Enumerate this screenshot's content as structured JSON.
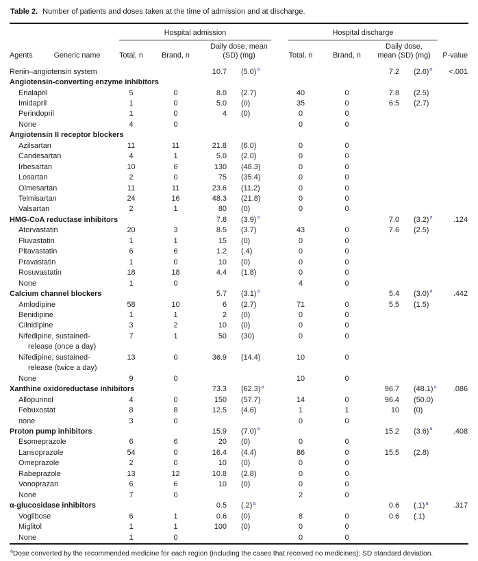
{
  "title": {
    "prefix": "Table 2.",
    "text": "Number of patients and doses taken at the time of admission and at discharge."
  },
  "colors": {
    "footnote_sup": "#3c4db8"
  },
  "table": {
    "header": {
      "group_admission": "Hospital admission",
      "group_discharge": "Hospital discharge",
      "col_agents": "Agents",
      "col_generic": "Generic name",
      "col_total": "Total, n",
      "col_brand": "Brand, n",
      "col_dose_admission_line1": "Daily dose, mean",
      "col_dose_admission_line2": "(SD) (mg)",
      "col_dose_discharge_line1": "Daily dose,",
      "col_dose_discharge_line2": "mean (SD) (mg)",
      "col_pvalue": "P-value"
    },
    "footnote_marker": "a",
    "rows": [
      {
        "style": "plain",
        "label": "Renin–angiotensin system",
        "am": "10.7",
        "asd": "(5.0)",
        "asup": true,
        "dm": "7.2",
        "dsd": "(2.6)",
        "dsup": true,
        "p": "<.001"
      },
      {
        "style": "section",
        "label": "Angiotensin-converting enzyme inhibitors"
      },
      {
        "style": "item",
        "label": "Enalapril",
        "at": "5",
        "ab": "0",
        "am": "8.0",
        "asd": "(2.7)",
        "dt": "40",
        "db": "0",
        "dm": "7.8",
        "dsd": "(2.5)"
      },
      {
        "style": "item",
        "label": "Imidapril",
        "at": "1",
        "ab": "0",
        "am": "5.0",
        "asd": "(0)",
        "dt": "35",
        "db": "0",
        "dm": "6.5",
        "dsd": "(2.7)"
      },
      {
        "style": "item",
        "label": "Perindopril",
        "at": "1",
        "ab": "0",
        "am": "4",
        "asd": "(0)",
        "dt": "0",
        "db": "0"
      },
      {
        "style": "item",
        "label": "None",
        "at": "4",
        "ab": "0",
        "dt": "0",
        "db": "0"
      },
      {
        "style": "section",
        "label": "Angiotensin II receptor blockers"
      },
      {
        "style": "item",
        "label": "Azilsartan",
        "at": "11",
        "ab": "11",
        "am": "21.8",
        "asd": "(6.0)",
        "dt": "0",
        "db": "0"
      },
      {
        "style": "item",
        "label": "Candesartan",
        "at": "4",
        "ab": "1",
        "am": "5.0",
        "asd": "(2.0)",
        "dt": "0",
        "db": "0"
      },
      {
        "style": "item",
        "label": "Irbesartan",
        "at": "10",
        "ab": "6",
        "am": "130",
        "asd": "(48.3)",
        "dt": "0",
        "db": "0"
      },
      {
        "style": "item",
        "label": "Losartan",
        "at": "2",
        "ab": "0",
        "am": "75",
        "asd": "(35.4)",
        "dt": "0",
        "db": "0"
      },
      {
        "style": "item",
        "label": "Olmesartan",
        "at": "11",
        "ab": "11",
        "am": "23.6",
        "asd": "(11.2)",
        "dt": "0",
        "db": "0"
      },
      {
        "style": "item",
        "label": "Telmisartan",
        "at": "24",
        "ab": "16",
        "am": "48.3",
        "asd": "(21.8)",
        "dt": "0",
        "db": "0"
      },
      {
        "style": "item",
        "label": "Valsartan",
        "at": "2",
        "ab": "1",
        "am": "80",
        "asd": "(0)",
        "dt": "0",
        "db": "0"
      },
      {
        "style": "section",
        "label": "HMG-CoA reductase inhibitors",
        "am": "7.8",
        "asd": "(3.9)",
        "asup": true,
        "dm": "7.0",
        "dsd": "(3.2)",
        "dsup": true,
        "p": ".124"
      },
      {
        "style": "item",
        "label": "Atorvastatin",
        "at": "20",
        "ab": "3",
        "am": "8.5",
        "asd": "(3.7)",
        "dt": "43",
        "db": "0",
        "dm": "7.6",
        "dsd": "(2.5)"
      },
      {
        "style": "item",
        "label": "Fluvastatin",
        "at": "1",
        "ab": "1",
        "am": "15",
        "asd": "(0)",
        "dt": "0",
        "db": "0"
      },
      {
        "style": "item",
        "label": "Pitavastatin",
        "at": "6",
        "ab": "6",
        "am": "1.2",
        "asd": "(.4)",
        "dt": "0",
        "db": "0"
      },
      {
        "style": "item",
        "label": "Pravastatin",
        "at": "1",
        "ab": "0",
        "am": "10",
        "asd": "(0)",
        "dt": "0",
        "db": "0"
      },
      {
        "style": "item",
        "label": "Rosuvastatin",
        "at": "18",
        "ab": "18",
        "am": "4.4",
        "asd": "(1.8)",
        "dt": "0",
        "db": "0"
      },
      {
        "style": "item",
        "label": "None",
        "at": "1",
        "ab": "0",
        "dt": "4",
        "db": "0"
      },
      {
        "style": "section",
        "label": "Calcium channel blockers",
        "am": "5.7",
        "asd": "(3.1)",
        "asup": true,
        "dm": "5.4",
        "dsd": "(3.0)",
        "dsup": true,
        "p": ".442"
      },
      {
        "style": "item",
        "label": "Amlodipine",
        "at": "58",
        "ab": "10",
        "am": "6",
        "asd": "(2.7)",
        "dt": "71",
        "db": "0",
        "dm": "5.5",
        "dsd": "(1.5)"
      },
      {
        "style": "item",
        "label": "Benidipine",
        "at": "1",
        "ab": "1",
        "am": "2",
        "asd": "(0)",
        "dt": "0",
        "db": "0"
      },
      {
        "style": "item",
        "label": "Cilnidipine",
        "at": "3",
        "ab": "2",
        "am": "10",
        "asd": "(0)",
        "dt": "0",
        "db": "0"
      },
      {
        "style": "item",
        "label": "Nifedipine, sustained-",
        "label2": "release (once a day)",
        "at": "7",
        "ab": "1",
        "am": "50",
        "asd": "(30)",
        "dt": "0",
        "db": "0"
      },
      {
        "style": "item",
        "label": "Nifedipine, sustained-",
        "label2": "release (twice a day)",
        "at": "13",
        "ab": "0",
        "am": "36.9",
        "asd": "(14.4)",
        "dt": "10",
        "db": "0"
      },
      {
        "style": "item",
        "label": "None",
        "at": "9",
        "ab": "0",
        "dt": "10",
        "db": "0"
      },
      {
        "style": "section",
        "label": "Xanthine oxidoreductase inhibitors",
        "am": "73.3",
        "asd": "(62.3)",
        "asup": true,
        "dm": "96.7",
        "dsd": "(48.1)",
        "dsup": true,
        "p": ".086"
      },
      {
        "style": "item",
        "label": "Allopurinol",
        "at": "4",
        "ab": "0",
        "am": "150",
        "asd": "(57.7)",
        "dt": "14",
        "db": "0",
        "dm": "96.4",
        "dsd": "(50.0)"
      },
      {
        "style": "item",
        "label": "Febuxostat",
        "at": "8",
        "ab": "8",
        "am": "12.5",
        "asd": "(4.6)",
        "dt": "1",
        "db": "1",
        "dm": "10",
        "dsd": "(0)"
      },
      {
        "style": "item",
        "label": "none",
        "at": "3",
        "ab": "0",
        "dt": "0",
        "db": "0"
      },
      {
        "style": "section",
        "label": "Proton pump inhibitors",
        "am": "15.9",
        "asd": "(7.0)",
        "asup": true,
        "dm": "15.2",
        "dsd": "(3.6)",
        "dsup": true,
        "p": ".408"
      },
      {
        "style": "item",
        "label": "Esomeprazole",
        "at": "6",
        "ab": "6",
        "am": "20",
        "asd": "(0)",
        "dt": "0",
        "db": "0"
      },
      {
        "style": "item",
        "label": "Lansoprazole",
        "at": "54",
        "ab": "0",
        "am": "16.4",
        "asd": "(4.4)",
        "dt": "86",
        "db": "0",
        "dm": "15.5",
        "dsd": "(2.8)"
      },
      {
        "style": "item",
        "label": "Omeprazole",
        "at": "2",
        "ab": "0",
        "am": "10",
        "asd": "(0)",
        "dt": "0",
        "db": "0"
      },
      {
        "style": "item",
        "label": "Rabeprazole",
        "at": "13",
        "ab": "12",
        "am": "10.8",
        "asd": "(2.8)",
        "dt": "0",
        "db": "0"
      },
      {
        "style": "item",
        "label": "Vonoprazan",
        "at": "6",
        "ab": "6",
        "am": "10",
        "asd": "(0)",
        "dt": "0",
        "db": "0"
      },
      {
        "style": "item",
        "label": "None",
        "at": "7",
        "ab": "0",
        "dt": "2",
        "db": "0"
      },
      {
        "style": "section",
        "label": "α-glucosidase inhibitors",
        "am": "0.5",
        "asd": "(.2)",
        "asup": true,
        "dm": "0.6",
        "dsd": "(.1)",
        "dsup": true,
        "p": ".317"
      },
      {
        "style": "item",
        "label": "Voglibose",
        "at": "6",
        "ab": "1",
        "am": "0.6",
        "asd": "(0)",
        "dt": "8",
        "db": "0",
        "dm": "0.6",
        "dsd": "(.1)"
      },
      {
        "style": "item",
        "label": "Miglitol",
        "at": "1",
        "ab": "1",
        "am": "100",
        "asd": "(0)",
        "dt": "0",
        "db": "0"
      },
      {
        "style": "item",
        "label": "None",
        "at": "1",
        "ab": "0",
        "dt": "0",
        "db": "0"
      }
    ]
  },
  "footnote": {
    "marker": "a",
    "text": "Dose converted by the recommended medicine for each region (including the cases that received no medicines); SD standard deviation."
  }
}
